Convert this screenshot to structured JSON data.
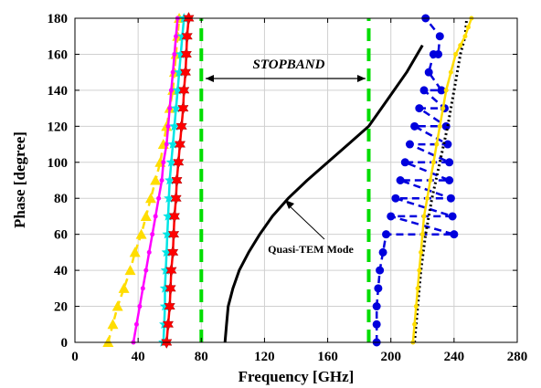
{
  "chart_data": {
    "type": "line",
    "xlabel": "Frequency [GHz]",
    "ylabel": "Phase [degree]",
    "xlim": [
      0,
      280
    ],
    "ylim": [
      0,
      180
    ],
    "xticks": [
      "0",
      "40",
      "80",
      "120",
      "160",
      "200",
      "240",
      "280"
    ],
    "yticks": [
      "0",
      "20",
      "40",
      "60",
      "80",
      "100",
      "120",
      "140",
      "160",
      "180"
    ],
    "grid": true,
    "annotations": {
      "stopband": "STOPBAND",
      "quasi_tem": "Quasi-TEM Mode"
    },
    "stopband_range": [
      80,
      186
    ],
    "colors": {
      "yellow": "#ffdd00",
      "magenta": "#ff00ff",
      "cyan": "#00e5e5",
      "red": "#ff0000",
      "green": "#00dd00",
      "black": "#000000",
      "blue": "#0000dd"
    },
    "series": [
      {
        "color": "yellow",
        "marker": "triangle",
        "style": "dashed",
        "x": [
          21,
          24,
          27,
          31,
          35,
          38,
          42,
          45,
          48,
          51,
          54,
          56,
          58,
          60,
          62,
          63,
          64,
          65,
          66
        ],
        "y": [
          0,
          10,
          20,
          30,
          40,
          50,
          60,
          70,
          80,
          90,
          100,
          110,
          120,
          130,
          140,
          150,
          160,
          170,
          180
        ]
      },
      {
        "color": "magenta",
        "marker": "dot",
        "style": "solid",
        "x": [
          37,
          39,
          41,
          43,
          45,
          47,
          49,
          51,
          53,
          55,
          56,
          58,
          59,
          60,
          61,
          62,
          63,
          64,
          65
        ],
        "y": [
          0,
          10,
          20,
          30,
          40,
          50,
          60,
          70,
          80,
          90,
          100,
          110,
          120,
          130,
          140,
          150,
          160,
          170,
          180
        ]
      },
      {
        "color": "cyan",
        "marker": "star",
        "style": "solid",
        "x": [
          56,
          56.5,
          57,
          57,
          57.5,
          58,
          58.5,
          59,
          59.5,
          60,
          61,
          62,
          63,
          64,
          65,
          66,
          67,
          68,
          69
        ],
        "y": [
          0,
          10,
          20,
          30,
          40,
          50,
          60,
          70,
          80,
          90,
          100,
          110,
          120,
          130,
          140,
          150,
          160,
          170,
          180
        ]
      },
      {
        "color": "red",
        "marker": "hexagram",
        "style": "solid",
        "x": [
          58,
          59,
          60,
          60.5,
          61,
          62,
          62.5,
          63,
          64,
          64.5,
          65.5,
          66.5,
          67.5,
          68.5,
          69,
          70,
          70.5,
          71,
          72
        ],
        "y": [
          0,
          10,
          20,
          30,
          40,
          50,
          60,
          70,
          80,
          90,
          100,
          110,
          120,
          130,
          140,
          150,
          160,
          170,
          180
        ]
      },
      {
        "color": "green",
        "marker": "none",
        "style": "dashed-thick",
        "x": [
          80,
          80
        ],
        "y": [
          0,
          180
        ]
      },
      {
        "color": "green",
        "marker": "none",
        "style": "dashed-thick",
        "x": [
          186,
          186
        ],
        "y": [
          0,
          180
        ]
      },
      {
        "color": "black",
        "marker": "none",
        "style": "solid-thick",
        "x": [
          95,
          96,
          97,
          100,
          104,
          110,
          117,
          125,
          135,
          147,
          160,
          173,
          186,
          198,
          210,
          220
        ],
        "y": [
          0,
          10,
          20,
          30,
          40,
          50,
          60,
          70,
          80,
          90,
          100,
          110,
          120,
          135,
          150,
          165
        ]
      },
      {
        "color": "blue",
        "marker": "circle",
        "style": "dashed",
        "x": [
          191,
          191,
          191,
          192,
          193,
          195,
          197,
          200,
          203,
          206,
          209,
          212,
          215,
          218,
          221,
          224,
          227,
          230,
          232,
          234,
          235,
          236,
          237,
          237,
          238,
          239,
          240,
          231,
          222
        ],
        "y": [
          0,
          10,
          20,
          30,
          40,
          50,
          60,
          70,
          80,
          90,
          100,
          110,
          120,
          130,
          140,
          150,
          160,
          160,
          140,
          130,
          120,
          110,
          100,
          90,
          80,
          70,
          60,
          170,
          180
        ]
      },
      {
        "color": "black",
        "marker": "none",
        "style": "dotted",
        "x": [
          215,
          217,
          219,
          222,
          226,
          231,
          236,
          240,
          244,
          247,
          248
        ],
        "y": [
          0,
          20,
          40,
          60,
          80,
          100,
          120,
          140,
          160,
          170,
          180
        ]
      },
      {
        "color": "yellow",
        "marker": "dot",
        "style": "solid",
        "x": [
          214,
          215,
          216,
          217,
          218,
          219,
          220,
          221,
          223,
          225,
          227,
          229,
          231,
          233,
          235,
          238,
          241,
          244,
          247,
          249,
          251
        ],
        "y": [
          0,
          10,
          20,
          30,
          40,
          50,
          60,
          70,
          80,
          90,
          100,
          110,
          120,
          130,
          140,
          150,
          160,
          165,
          170,
          175,
          180
        ]
      }
    ]
  }
}
